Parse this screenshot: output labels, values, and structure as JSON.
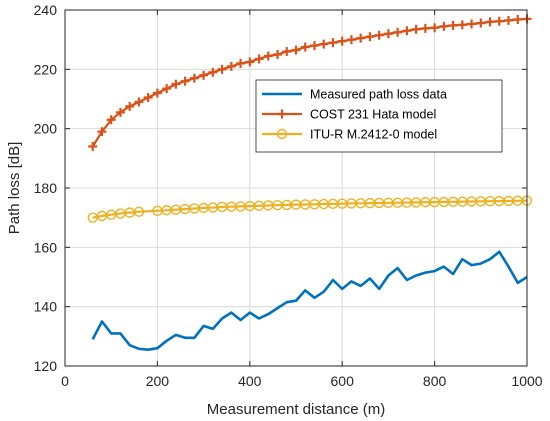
{
  "chart_data": {
    "type": "line",
    "xlabel": "Measurement distance (m)",
    "ylabel": "Path loss [dB]",
    "xlim": [
      0,
      1000
    ],
    "ylim": [
      120,
      240
    ],
    "xticks": [
      0,
      200,
      400,
      600,
      800,
      1000
    ],
    "yticks": [
      120,
      140,
      160,
      180,
      200,
      220,
      240
    ],
    "grid": true,
    "legend_position": "upper-right",
    "series": [
      {
        "name": "Measured path loss data",
        "color": "#0072BD",
        "marker": "none",
        "x": [
          60,
          80,
          100,
          120,
          140,
          160,
          180,
          200,
          220,
          240,
          260,
          280,
          300,
          320,
          340,
          360,
          380,
          400,
          420,
          440,
          460,
          480,
          500,
          520,
          540,
          560,
          580,
          600,
          620,
          640,
          660,
          680,
          700,
          720,
          740,
          760,
          780,
          800,
          820,
          840,
          860,
          880,
          900,
          920,
          940,
          960,
          980,
          1000
        ],
        "y": [
          129,
          135,
          131,
          131,
          127,
          125.8,
          125.5,
          126,
          128.5,
          130.5,
          129.5,
          129.5,
          133.5,
          132.5,
          136,
          138,
          135.5,
          138,
          136,
          137.5,
          139.5,
          141.5,
          142,
          145.5,
          143,
          145,
          149,
          146,
          148.5,
          147,
          149.5,
          146,
          150.5,
          153,
          149,
          150.5,
          151.5,
          152,
          153.5,
          151,
          156,
          154,
          154.5,
          156,
          158.5,
          153.5,
          148,
          150
        ]
      },
      {
        "name": "COST 231 Hata model",
        "color": "#D95319",
        "marker": "plus",
        "x": [
          60,
          80,
          100,
          120,
          140,
          160,
          180,
          200,
          220,
          240,
          260,
          280,
          300,
          320,
          340,
          360,
          380,
          400,
          420,
          440,
          460,
          480,
          500,
          520,
          540,
          560,
          580,
          600,
          620,
          640,
          660,
          680,
          700,
          720,
          740,
          760,
          780,
          800,
          820,
          840,
          860,
          880,
          900,
          920,
          940,
          960,
          980,
          1000
        ],
        "y": [
          194,
          199,
          203,
          205.5,
          207.5,
          209,
          210.5,
          212,
          213.5,
          215,
          216,
          217,
          218,
          219,
          220,
          221,
          222,
          222.5,
          223.5,
          224.5,
          225,
          226,
          226.5,
          227.5,
          228,
          228.5,
          229,
          229.5,
          230,
          230.5,
          231,
          231.5,
          232,
          232.5,
          233,
          233.5,
          233.8,
          234,
          234.5,
          234.8,
          235,
          235.3,
          235.6,
          236,
          236.2,
          236.5,
          236.8,
          237
        ]
      },
      {
        "name": "ITU-R M.2412-0 model",
        "color": "#EDB120",
        "marker": "circle",
        "x": [
          60,
          80,
          100,
          120,
          140,
          160,
          200,
          220,
          240,
          260,
          280,
          300,
          320,
          340,
          360,
          380,
          400,
          420,
          440,
          460,
          480,
          500,
          520,
          540,
          560,
          580,
          600,
          620,
          640,
          660,
          680,
          700,
          720,
          740,
          760,
          780,
          800,
          820,
          840,
          860,
          880,
          900,
          920,
          940,
          960,
          980,
          1000
        ],
        "y": [
          170,
          170.6,
          171,
          171.4,
          171.7,
          172,
          172.3,
          172.5,
          172.7,
          172.9,
          173.1,
          173.3,
          173.4,
          173.6,
          173.7,
          173.8,
          173.9,
          174,
          174.1,
          174.2,
          174.3,
          174.4,
          174.45,
          174.5,
          174.6,
          174.65,
          174.7,
          174.8,
          174.85,
          174.9,
          174.95,
          175,
          175.05,
          175.1,
          175.15,
          175.2,
          175.25,
          175.3,
          175.35,
          175.4,
          175.45,
          175.5,
          175.55,
          175.6,
          175.65,
          175.7,
          175.75
        ]
      }
    ]
  }
}
